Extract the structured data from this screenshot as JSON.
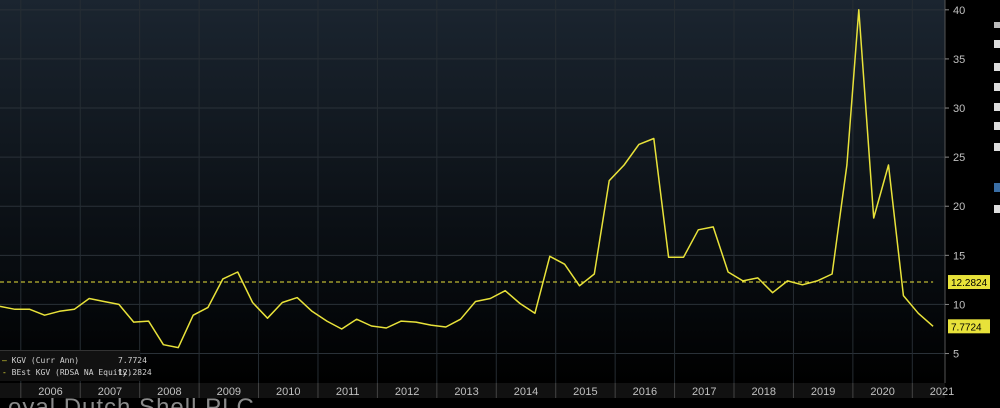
{
  "chart_data": {
    "type": "line",
    "title": "",
    "xlabel": "",
    "ylabel": "",
    "ylim": [
      2,
      41
    ],
    "xlim": [
      2005.65,
      2021.55
    ],
    "grid": true,
    "y_ticks": [
      5,
      10,
      15,
      20,
      25,
      30,
      35,
      40
    ],
    "x_ticks": [
      "2006",
      "2007",
      "2008",
      "2009",
      "2010",
      "2011",
      "2012",
      "2013",
      "2014",
      "2015",
      "2016",
      "2017",
      "2018",
      "2019",
      "2020",
      "2021"
    ],
    "series": [
      {
        "name": "KGV (Curr Ann)",
        "style": "solid",
        "color": "#e8e23a",
        "points": [
          [
            2005.65,
            9.8
          ],
          [
            2005.9,
            9.5
          ],
          [
            2006.15,
            9.5
          ],
          [
            2006.4,
            8.9
          ],
          [
            2006.65,
            9.3
          ],
          [
            2006.9,
            9.5
          ],
          [
            2007.15,
            10.6
          ],
          [
            2007.4,
            10.3
          ],
          [
            2007.65,
            10.0
          ],
          [
            2007.9,
            8.2
          ],
          [
            2008.15,
            8.3
          ],
          [
            2008.4,
            5.9
          ],
          [
            2008.65,
            5.6
          ],
          [
            2008.9,
            8.9
          ],
          [
            2009.15,
            9.7
          ],
          [
            2009.4,
            12.6
          ],
          [
            2009.65,
            13.3
          ],
          [
            2009.9,
            10.2
          ],
          [
            2010.15,
            8.6
          ],
          [
            2010.4,
            10.2
          ],
          [
            2010.65,
            10.7
          ],
          [
            2010.9,
            9.3
          ],
          [
            2011.15,
            8.3
          ],
          [
            2011.4,
            7.5
          ],
          [
            2011.65,
            8.5
          ],
          [
            2011.9,
            7.8
          ],
          [
            2012.15,
            7.6
          ],
          [
            2012.4,
            8.3
          ],
          [
            2012.65,
            8.2
          ],
          [
            2012.9,
            7.9
          ],
          [
            2013.15,
            7.7
          ],
          [
            2013.4,
            8.5
          ],
          [
            2013.65,
            10.3
          ],
          [
            2013.9,
            10.6
          ],
          [
            2014.15,
            11.4
          ],
          [
            2014.4,
            10.1
          ],
          [
            2014.65,
            9.1
          ],
          [
            2014.9,
            14.9
          ],
          [
            2015.15,
            14.1
          ],
          [
            2015.4,
            11.9
          ],
          [
            2015.65,
            13.1
          ],
          [
            2015.9,
            22.6
          ],
          [
            2016.15,
            24.2
          ],
          [
            2016.4,
            26.3
          ],
          [
            2016.65,
            26.9
          ],
          [
            2016.9,
            14.8
          ],
          [
            2017.15,
            14.8
          ],
          [
            2017.4,
            17.6
          ],
          [
            2017.65,
            17.9
          ],
          [
            2017.9,
            13.3
          ],
          [
            2018.15,
            12.4
          ],
          [
            2018.4,
            12.7
          ],
          [
            2018.65,
            11.2
          ],
          [
            2018.9,
            12.4
          ],
          [
            2019.15,
            12.0
          ],
          [
            2019.4,
            12.4
          ],
          [
            2019.65,
            13.1
          ],
          [
            2019.9,
            24.2
          ],
          [
            2020.1,
            40.0
          ],
          [
            2020.35,
            18.8
          ],
          [
            2020.6,
            24.2
          ],
          [
            2020.85,
            10.9
          ],
          [
            2021.1,
            9.1
          ],
          [
            2021.35,
            7.77
          ]
        ]
      },
      {
        "name": "BEst KGV (RDSA NA Equity)",
        "style": "dashed",
        "color": "#e8e23a",
        "points": [
          [
            2005.65,
            12.2824
          ],
          [
            2021.35,
            12.2824
          ]
        ]
      }
    ],
    "value_labels": [
      {
        "label": "12.2824",
        "value": 12.2824
      },
      {
        "label": "7.7724",
        "value": 7.7724
      }
    ]
  },
  "legend": [
    {
      "label": "KGV (Curr Ann)",
      "value": "7.7724"
    },
    {
      "label": "BEst KGV (RDSA NA Equity)",
      "value": "12.2824"
    }
  ],
  "footer": {
    "title": "oyal Dutch Shell PLC"
  },
  "colors": {
    "background": "#000000",
    "line": "#e8e23a",
    "grid": "#333333",
    "axis_text": "#c0c0c0"
  }
}
